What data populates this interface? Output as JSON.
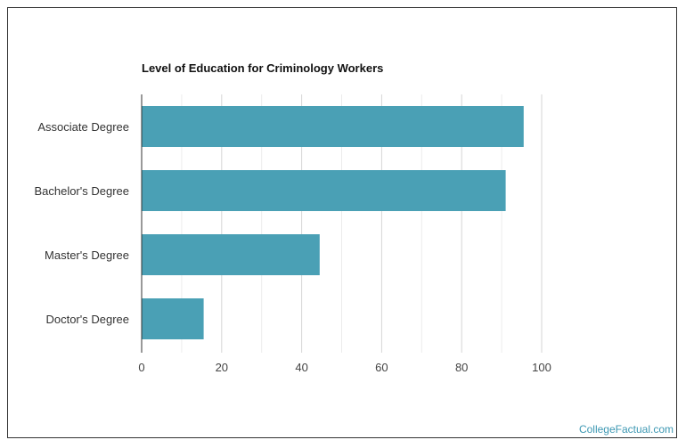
{
  "chart_data": {
    "type": "bar",
    "orientation": "horizontal",
    "title": "Level of Education for Criminology Workers",
    "categories": [
      "Associate Degree",
      "Bachelor's Degree",
      "Master's Degree",
      "Doctor's Degree"
    ],
    "values": [
      95.5,
      91,
      44.5,
      15.5
    ],
    "xlim": [
      0,
      100
    ],
    "xticks": [
      0,
      20,
      40,
      60,
      80,
      100
    ],
    "grid": true,
    "bar_color": "#4aa0b5"
  },
  "footer": {
    "brand": "CollegeFactual.com"
  }
}
